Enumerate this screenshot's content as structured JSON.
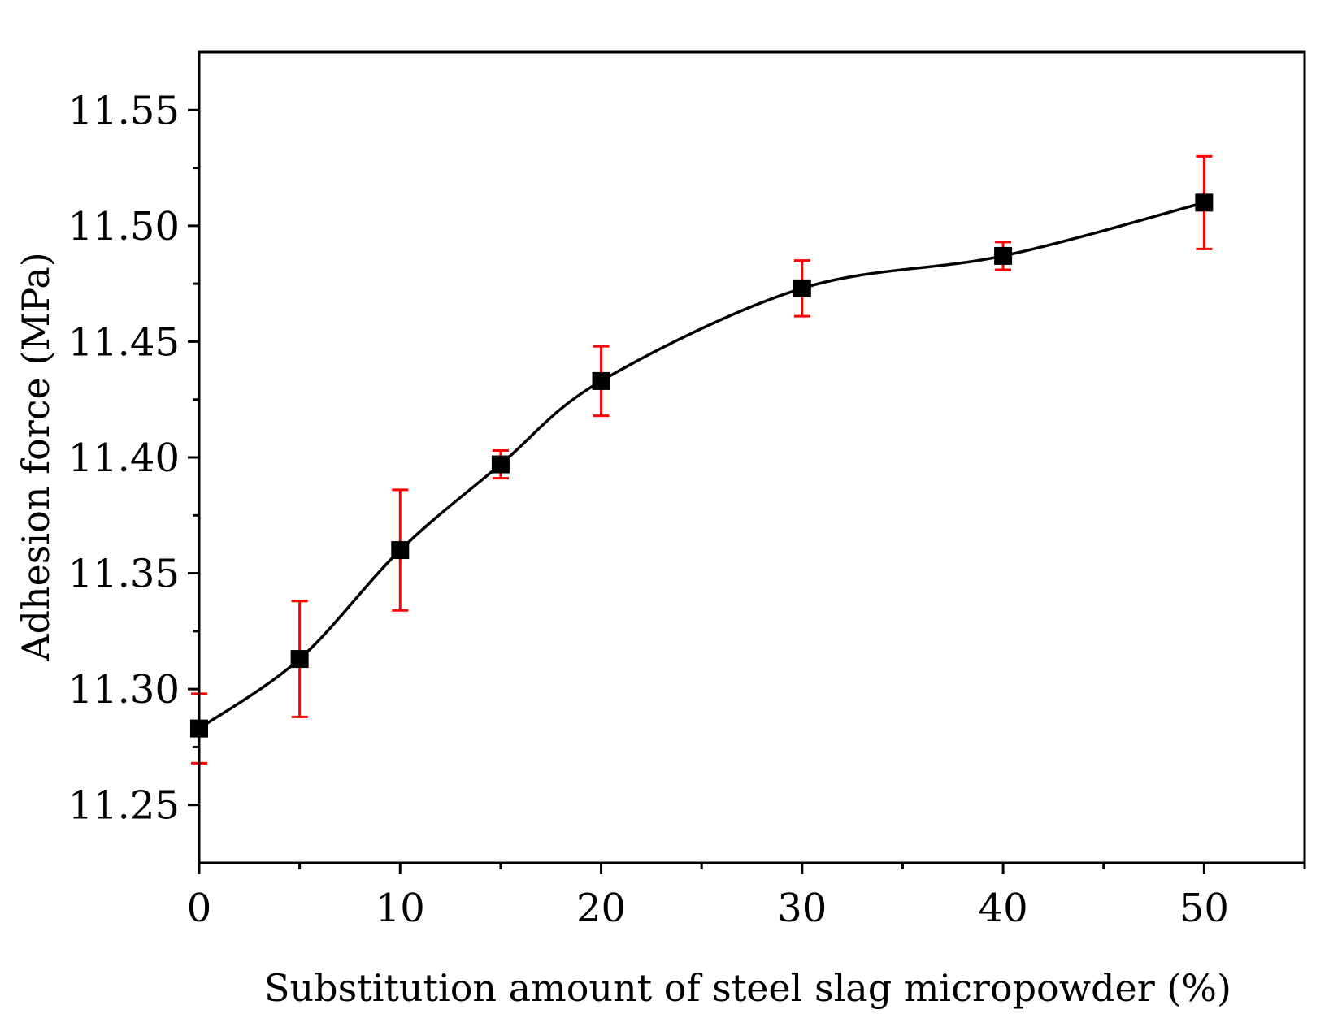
{
  "chart_data": {
    "type": "line",
    "title": "",
    "xlabel": "Substitution amount of steel slag micropowder (%)",
    "ylabel": "Adhesion force (MPa)",
    "xlim": [
      0,
      55
    ],
    "ylim": [
      11.225,
      11.575
    ],
    "x_major_ticks": [
      0,
      10,
      20,
      30,
      40,
      50
    ],
    "x_tick_labels": [
      "0",
      "10",
      "20",
      "30",
      "40",
      "50"
    ],
    "x_minor_ticks": [
      5,
      15,
      25,
      35,
      45,
      55
    ],
    "y_major_ticks": [
      11.25,
      11.3,
      11.35,
      11.4,
      11.45,
      11.5,
      11.55
    ],
    "y_tick_labels": [
      "11.25",
      "11.30",
      "11.35",
      "11.40",
      "11.45",
      "11.50",
      "11.55"
    ],
    "y_minor_ticks": [
      11.275,
      11.325,
      11.375,
      11.425,
      11.475,
      11.525
    ],
    "grid": false,
    "legend": "none",
    "series": [
      {
        "name": "Adhesion force",
        "marker": "square",
        "line_style": "smooth",
        "x": [
          0,
          5,
          10,
          15,
          20,
          30,
          40,
          50
        ],
        "values": [
          11.283,
          11.313,
          11.36,
          11.397,
          11.433,
          11.473,
          11.487,
          11.51
        ],
        "error": [
          0.015,
          0.025,
          0.026,
          0.006,
          0.015,
          0.012,
          0.006,
          0.02
        ]
      }
    ],
    "colors": {
      "line": "#000000",
      "marker": "#000000",
      "error_bar": "#ff0000",
      "axis": "#000000"
    }
  }
}
